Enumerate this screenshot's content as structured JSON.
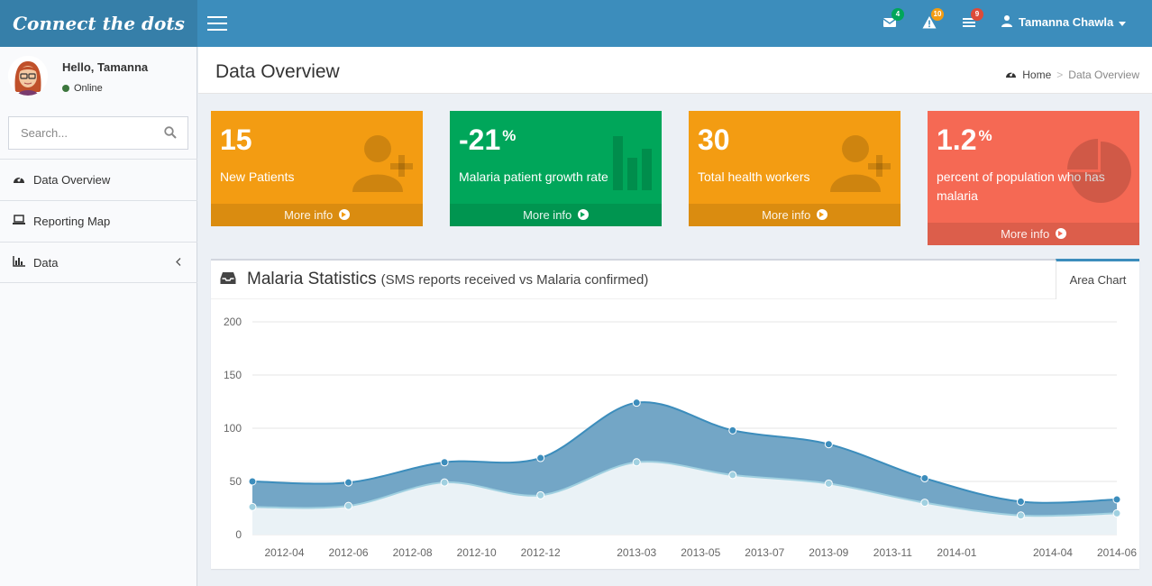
{
  "header": {
    "logo": "Connect the dots",
    "menu_icon": "hamburger-icon",
    "notifications": [
      {
        "icon": "envelope-icon",
        "count": "4",
        "color": "#00a65a"
      },
      {
        "icon": "warning-icon",
        "count": "10",
        "color": "#f39c12"
      },
      {
        "icon": "tasks-icon",
        "count": "9",
        "color": "#dd4b39"
      }
    ],
    "user_name": "Tamanna Chawla"
  },
  "sidebar": {
    "greeting": "Hello, Tamanna",
    "status": "Online",
    "search_placeholder": "Search...",
    "items": [
      {
        "label": "Data Overview",
        "icon": "dashboard-icon"
      },
      {
        "label": "Reporting Map",
        "icon": "laptop-icon"
      },
      {
        "label": "Data",
        "icon": "bar-chart-icon"
      }
    ]
  },
  "content": {
    "title": "Data Overview",
    "breadcrumb": {
      "home": "Home",
      "sep": ">",
      "current": "Data Overview"
    }
  },
  "stats": [
    {
      "value": "15",
      "suffix": "",
      "label": "New Patients",
      "more": "More info",
      "color": "#f39c12",
      "icon": "user-add-icon"
    },
    {
      "value": "-21",
      "suffix": "%",
      "label": "Malaria patient growth rate",
      "more": "More info",
      "color": "#00a65a",
      "icon": "bar-chart-icon"
    },
    {
      "value": "30",
      "suffix": "",
      "label": "Total health workers",
      "more": "More info",
      "color": "#f39c12",
      "icon": "user-add-icon"
    },
    {
      "value": "1.2",
      "suffix": "%",
      "label": "percent of population who has malaria",
      "more": "More info",
      "color": "#f56954",
      "icon": "pie-chart-icon"
    }
  ],
  "chart_box": {
    "title": "Malaria Statistics",
    "subtitle": "(SMS reports received vs Malaria confirmed)",
    "tab": "Area Chart"
  },
  "chart_data": {
    "type": "area",
    "x": [
      "2012-03",
      "2012-06",
      "2012-09",
      "2012-12",
      "2013-03",
      "2013-06",
      "2013-09",
      "2013-12",
      "2014-03",
      "2014-06"
    ],
    "series": [
      {
        "values": [
          50,
          49,
          68,
          72,
          124,
          98,
          85,
          53,
          31,
          33
        ],
        "color": "#3c8dbc"
      },
      {
        "values": [
          26,
          27,
          49,
          37,
          68,
          56,
          48,
          30,
          18,
          20
        ],
        "color": "#a0d0e0"
      }
    ],
    "ylim": [
      0,
      200
    ],
    "yticks": [
      0,
      50,
      100,
      150,
      200
    ],
    "xticks": [
      "2012-04",
      "2012-06",
      "2012-08",
      "2012-10",
      "2012-12",
      "2013-03",
      "2013-05",
      "2013-07",
      "2013-09",
      "2013-11",
      "2014-01",
      "2014-04",
      "2014-06"
    ],
    "grid": true
  }
}
